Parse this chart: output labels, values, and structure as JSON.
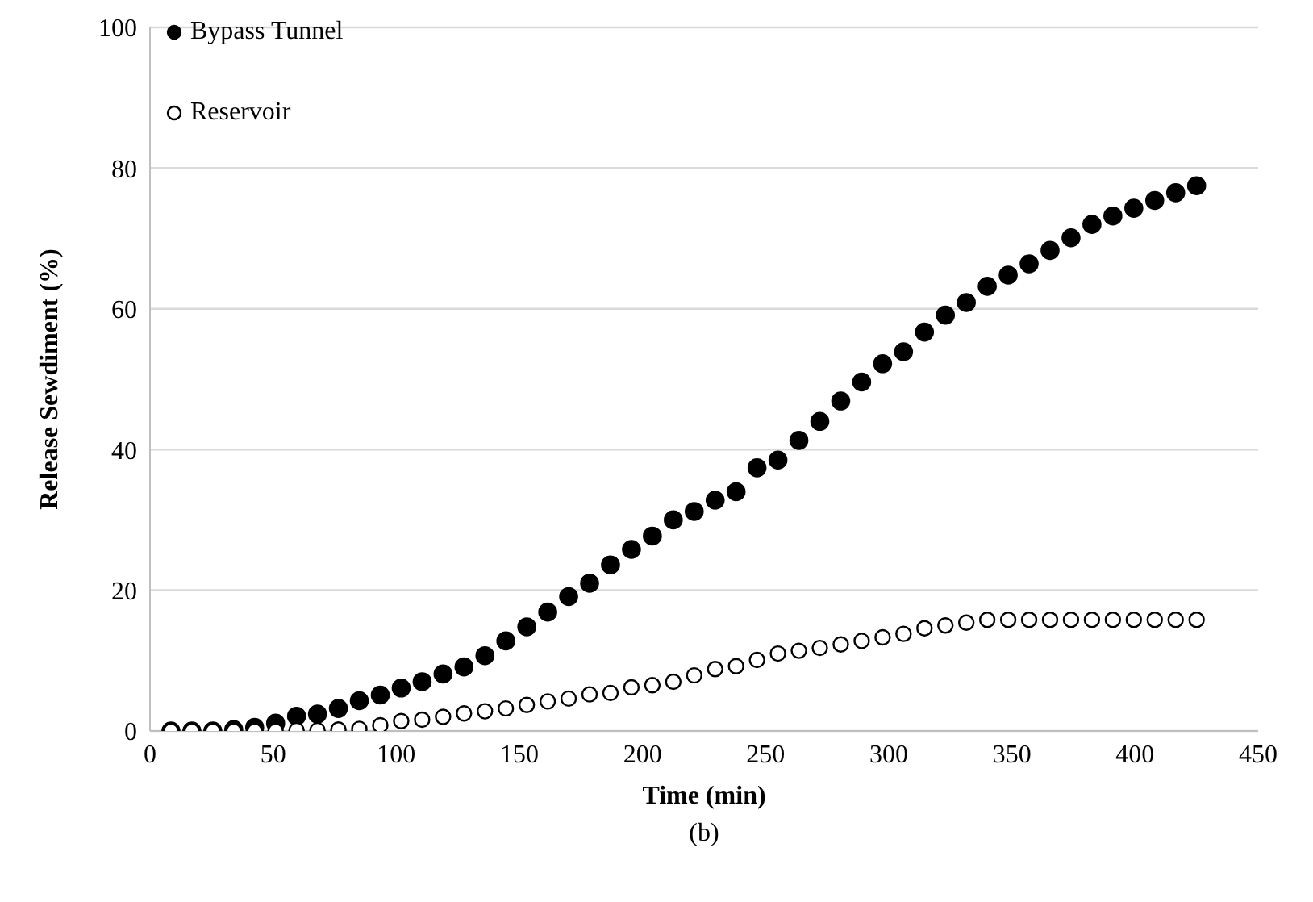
{
  "chart_data": {
    "type": "scatter",
    "xlabel": "Time (min)",
    "ylabel": "Release Sewdiment (%)",
    "annotations": [
      "(b)"
    ],
    "x": [
      8.5,
      17,
      25.5,
      34,
      42.5,
      51,
      59.5,
      68,
      76.5,
      85,
      93.5,
      102,
      110.5,
      119,
      127.5,
      136,
      144.5,
      153,
      161.5,
      170,
      178.5,
      187,
      195.5,
      204,
      212.5,
      221,
      229.5,
      238,
      246.5,
      255,
      263.5,
      272,
      280.5,
      289,
      297.5,
      306,
      314.5,
      323,
      331.5,
      340,
      348.5,
      357,
      365.5,
      374,
      382.5,
      391,
      399.5,
      408,
      416.5,
      425
    ],
    "series": [
      {
        "name": "Bypass Tunnel",
        "color": "#000000",
        "values": [
          0,
          0,
          0,
          0.2,
          0.5,
          1.1,
          2.1,
          2.4,
          3.2,
          4.3,
          5.1,
          6.1,
          7.0,
          8.1,
          9.1,
          10.7,
          12.8,
          14.8,
          16.9,
          19.1,
          21.0,
          23.6,
          25.8,
          27.7,
          30.0,
          31.2,
          32.8,
          34.0,
          37.4,
          38.5,
          41.3,
          44.0,
          46.9,
          49.6,
          52.2,
          53.9,
          56.7,
          59.1,
          60.9,
          63.2,
          64.8,
          66.4,
          68.3,
          70.1,
          72.0,
          73.2,
          74.3,
          75.4,
          76.5,
          77.5
        ]
      },
      {
        "name": "Reservoir",
        "color": "#ffffff",
        "values": [
          0,
          0,
          0,
          0,
          0,
          0,
          0.1,
          0.1,
          0.2,
          0.3,
          0.8,
          1.4,
          1.6,
          2.0,
          2.5,
          2.8,
          3.2,
          3.7,
          4.2,
          4.6,
          5.2,
          5.4,
          6.2,
          6.5,
          7.0,
          7.9,
          8.8,
          9.2,
          10.1,
          11.0,
          11.4,
          11.8,
          12.3,
          12.8,
          13.3,
          13.8,
          14.6,
          15.0,
          15.4,
          15.8,
          15.8,
          15.8,
          15.8,
          15.8,
          15.8,
          15.8,
          15.8,
          15.8,
          15.8,
          15.8
        ]
      }
    ],
    "xlim": [
      0,
      450
    ],
    "xticks": [
      0,
      50,
      100,
      150,
      200,
      250,
      300,
      350,
      400,
      450
    ],
    "ylim": [
      0,
      100
    ],
    "yticks": [
      0,
      20,
      40,
      60,
      80,
      100
    ],
    "grid": "y",
    "legend": "top left",
    "marker": "circle"
  }
}
